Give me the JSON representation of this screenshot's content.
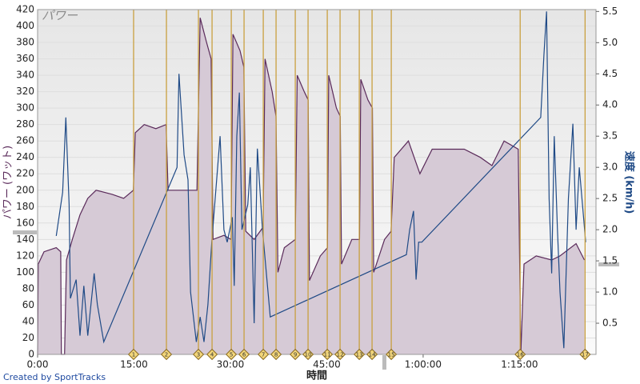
{
  "chart_data": {
    "type": "area-line",
    "title": "パワー",
    "x_label": "時間",
    "y_label": "パワー (ワット)",
    "y2_label": "速度 (km/h)",
    "footer": "Created by SportTracks",
    "xlim": [
      0,
      86.9
    ],
    "xticks": [
      {
        "value": 0,
        "label": "0:00"
      },
      {
        "value": 15,
        "label": "15:00"
      },
      {
        "value": 30,
        "label": "30:00"
      },
      {
        "value": 45,
        "label": "45:00"
      },
      {
        "value": 60,
        "label": "1:00:00"
      },
      {
        "value": 75,
        "label": "1:15:00"
      }
    ],
    "ylim": [
      0,
      420
    ],
    "yticks": [
      0,
      20,
      40,
      60,
      80,
      100,
      120,
      140,
      160,
      180,
      200,
      220,
      240,
      260,
      280,
      300,
      320,
      340,
      360,
      380,
      400,
      420
    ],
    "y2lim": [
      0,
      5.53
    ],
    "y2ticks": [
      0.5,
      {
        "value": 1,
        "label": "1.0"
      },
      1.5,
      {
        "value": 2,
        "label": "2.0"
      },
      2.5,
      {
        "value": 3,
        "label": "3.0"
      },
      3.5,
      {
        "value": 4,
        "label": "4.0"
      },
      4.5,
      {
        "value": 5,
        "label": "5.0"
      },
      5.5
    ],
    "grid": true,
    "series": [
      {
        "color": "#5a2a5a",
        "fill": "#d6cad6",
        "axis": "y",
        "x": [
          0,
          0.1,
          1,
          2.9,
          3.6,
          3.7,
          4.2,
          4.5,
          5.4,
          6.6,
          7.8,
          9.1,
          11.6,
          13.4,
          14.9,
          15.2,
          16.6,
          18.4,
          20.0,
          20.3,
          22.8,
          24.8,
          25.3,
          26.3,
          27.0,
          27.3,
          29.0,
          30.1,
          30.4,
          31.5,
          32.1,
          32.4,
          33.7,
          35.1,
          35.4,
          36.5,
          37.1,
          37.4,
          38.4,
          40.1,
          40.4,
          41.5,
          42.1,
          42.3,
          44.0,
          45.1,
          45.3,
          46.5,
          47.1,
          47.3,
          48.9,
          50.1,
          50.3,
          51.4,
          52.1,
          52.3,
          54.0,
          55.0,
          55.5,
          57.7,
          59.5,
          61.4,
          63.9,
          66.4,
          68.9,
          70.7,
          72.6,
          74.8,
          75.2,
          75.7,
          77.6,
          80.0,
          81.3,
          83.8,
          85.1
        ],
        "values": [
          0,
          110,
          125,
          130,
          125,
          0,
          0,
          115,
          140,
          170,
          190,
          200,
          195,
          190,
          200,
          270,
          280,
          275,
          280,
          200,
          200,
          200,
          410,
          380,
          360,
          140,
          145,
          140,
          390,
          370,
          350,
          150,
          140,
          155,
          360,
          320,
          290,
          100,
          130,
          140,
          340,
          320,
          310,
          90,
          120,
          130,
          340,
          300,
          290,
          110,
          140,
          140,
          335,
          310,
          300,
          100,
          140,
          150,
          240,
          260,
          220,
          250,
          250,
          250,
          240,
          230,
          260,
          250,
          0,
          110,
          120,
          115,
          120,
          135,
          115
        ]
      },
      {
        "color": "#1f4a86",
        "axis": "y2",
        "x": [
          2.9,
          3.9,
          4.4,
          4.9,
          5.1,
          6.0,
          6.6,
          7.2,
          7.8,
          8.8,
          9.3,
          10.3,
          21.7,
          22.0,
          22.8,
          23.4,
          23.8,
          24.7,
          25.3,
          25.9,
          26.5,
          27.1,
          28.4,
          29.0,
          29.5,
          30.3,
          30.6,
          31.0,
          31.4,
          31.8,
          32.7,
          33.1,
          33.7,
          34.2,
          35.0,
          36.2,
          57.4,
          57.9,
          58.5,
          58.9,
          59.3,
          59.8,
          78.3,
          78.8,
          79.2,
          79.6,
          80.0,
          80.4,
          80.9,
          81.3,
          81.9,
          82.6,
          83.3,
          83.8,
          84.3,
          84.8,
          85.3
        ],
        "values": [
          1.9,
          2.6,
          3.8,
          2.4,
          0.9,
          1.2,
          0.3,
          1.1,
          0.3,
          1.3,
          0.8,
          0.2,
          3.0,
          4.5,
          3.2,
          2.8,
          1.0,
          0.2,
          0.6,
          0.2,
          0.8,
          1.8,
          3.5,
          2.0,
          1.8,
          2.2,
          1.1,
          3.5,
          4.2,
          2.0,
          2.4,
          3.0,
          0.5,
          3.3,
          2.0,
          0.6,
          1.6,
          2.0,
          2.3,
          1.2,
          1.8,
          1.8,
          3.8,
          4.8,
          5.5,
          2.5,
          1.3,
          3.5,
          2.0,
          1.0,
          0.1,
          2.5,
          3.7,
          2.0,
          3.0,
          2.4,
          1.8
        ]
      }
    ],
    "laps": {
      "x": [
        14.94,
        20.05,
        25.03,
        27.15,
        30.14,
        32.13,
        35.12,
        37.11,
        40.1,
        42.09,
        45.08,
        47.07,
        50.06,
        52.05,
        55.04,
        75.1,
        85.2
      ],
      "labels": [
        "1",
        "2",
        "3",
        "4",
        "5",
        "6",
        "7",
        "8",
        "9",
        "10",
        "11",
        "12",
        "13",
        "14",
        "15",
        "16",
        "17"
      ],
      "color": "#c9a040"
    }
  }
}
